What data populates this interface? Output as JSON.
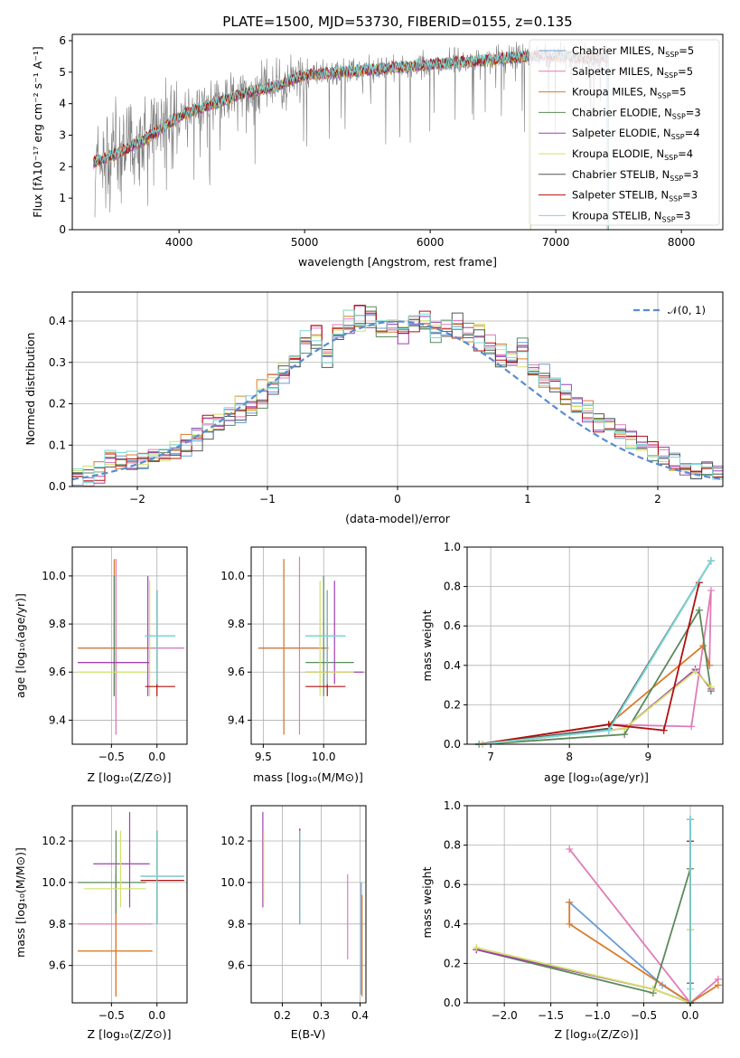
{
  "title": "PLATE=1500, MJD=53730, FIBERID=0155, z=0.135",
  "colors": {
    "series": [
      "#6a9bd8",
      "#e07bb8",
      "#d97b2a",
      "#5a8a5a",
      "#a040b0",
      "#d4e06a",
      "#555555",
      "#b01010",
      "#7ad8d8"
    ],
    "normal": "#5a8cd0",
    "spectrum": "#7f7f7f",
    "grid": "#b0b0b0"
  },
  "panels": {
    "spectrum": {
      "xlabel": "wavelength [Angstrom, rest frame]",
      "ylabel": "Flux [fλ10⁻¹⁷ erg cm⁻² s⁻¹ A⁻¹]",
      "xticks": [
        "4000",
        "5000",
        "6000",
        "7000",
        "8000"
      ],
      "yticks": [
        "0",
        "1",
        "2",
        "3",
        "4",
        "5",
        "6"
      ],
      "legend": [
        "Chabrier MILES, N_SSP=5",
        "Salpeter MILES, N_SSP=5",
        "Kroupa MILES, N_SSP=5",
        "Chabrier ELODIE, N_SSP=3",
        "Salpeter ELODIE, N_SSP=4",
        "Kroupa ELODIE, N_SSP=4",
        "Chabrier STELIB, N_SSP=3",
        "Salpeter STELIB, N_SSP=3",
        "Kroupa STELIB, N_SSP=3"
      ]
    },
    "residuals": {
      "xlabel": "(data-model)/error",
      "ylabel": "Normed distribution",
      "xticks": [
        "−2",
        "−1",
        "0",
        "1",
        "2"
      ],
      "yticks": [
        "0.0",
        "0.1",
        "0.2",
        "0.3",
        "0.4"
      ],
      "legend": "𝒩(0, 1)"
    },
    "age_vs_z": {
      "xlabel": "Z [log₁₀(Z/Z⊙)]",
      "ylabel": "age  [log₁₀(age/yr)]",
      "xticks": [
        "−0.5",
        "0.0"
      ],
      "yticks": [
        "9.4",
        "9.6",
        "9.8",
        "10.0"
      ]
    },
    "age_vs_mass": {
      "xlabel": "mass [log₁₀(M/M⊙)]",
      "xticks": [
        "9.5",
        "10.0"
      ],
      "yticks": [
        "9.4",
        "9.6",
        "9.8",
        "10.0"
      ]
    },
    "weight_vs_age": {
      "xlabel": "age  [log₁₀(age/yr)]",
      "ylabel": "mass weight",
      "xticks": [
        "7",
        "8",
        "9"
      ],
      "yticks": [
        "0.0",
        "0.2",
        "0.4",
        "0.6",
        "0.8",
        "1.0"
      ]
    },
    "mass_vs_z": {
      "xlabel": "Z [log₁₀(Z/Z⊙)]",
      "ylabel": "mass [log₁₀(M/M⊙)]",
      "xticks": [
        "−0.5",
        "0.0"
      ],
      "yticks": [
        "9.6",
        "9.8",
        "10.0",
        "10.2"
      ]
    },
    "mass_vs_ebv": {
      "xlabel": "E(B-V)",
      "xticks": [
        "0.2",
        "0.3",
        "0.4"
      ],
      "yticks": [
        "9.6",
        "9.8",
        "10.0",
        "10.2"
      ]
    },
    "weight_vs_z": {
      "xlabel": "Z [log₁₀(Z/Z⊙)]",
      "ylabel": "mass weight",
      "xticks": [
        "−2.0",
        "−1.5",
        "−1.0",
        "−0.5",
        "0.0"
      ],
      "yticks": [
        "0.0",
        "0.2",
        "0.4",
        "0.6",
        "0.8",
        "1.0"
      ]
    }
  },
  "chart_data": [
    {
      "panel": "spectrum",
      "type": "line",
      "xlim": [
        3150,
        8330
      ],
      "ylim": [
        0,
        6.2
      ],
      "data_approx": {
        "x": [
          3300,
          3500,
          3700,
          3900,
          4000,
          4200,
          4500,
          4800,
          5000,
          5300,
          5600,
          5900,
          6200,
          6500,
          6800,
          7100,
          7300,
          7500,
          7700
        ],
        "y": [
          2.1,
          2.4,
          2.8,
          3.3,
          3.6,
          3.9,
          4.3,
          4.6,
          4.9,
          5.0,
          5.1,
          5.2,
          5.3,
          5.4,
          5.5,
          5.5,
          5.4,
          5.5,
          5.3
        ]
      },
      "series_count": 9
    },
    {
      "panel": "residuals",
      "type": "line",
      "xlim": [
        -2.5,
        2.5
      ],
      "ylim": [
        0,
        0.47
      ],
      "normal_curve": {
        "mu": 0,
        "sigma": 1
      },
      "histogram_approx": {
        "bin_width": 0.1,
        "bins_from": -2.5,
        "series": [
          {
            "values": [
              0.02,
              0.02,
              0.03,
              0.05,
              0.06,
              0.05,
              0.06,
              0.08,
              0.07,
              0.08,
              0.09,
              0.1,
              0.12,
              0.14,
              0.16,
              0.17,
              0.19,
              0.2,
              0.24,
              0.27,
              0.3,
              0.33,
              0.35,
              0.3,
              0.36,
              0.37,
              0.4,
              0.42,
              0.37,
              0.38,
              0.38,
              0.41,
              0.39,
              0.36,
              0.38,
              0.4,
              0.38,
              0.37,
              0.34,
              0.3,
              0.32,
              0.35,
              0.27,
              0.28,
              0.24,
              0.22,
              0.2,
              0.18,
              0.16,
              0.15,
              0.13,
              0.11,
              0.09,
              0.08,
              0.07,
              0.06,
              0.05,
              0.04,
              0.04,
              0.03
            ]
          },
          {
            "values": [
              0.03,
              0.02,
              0.03,
              0.06,
              0.05,
              0.06,
              0.07,
              0.07,
              0.08,
              0.09,
              0.1,
              0.13,
              0.17,
              0.15,
              0.18,
              0.19,
              0.21,
              0.22,
              0.26,
              0.28,
              0.31,
              0.34,
              0.38,
              0.33,
              0.37,
              0.39,
              0.43,
              0.4,
              0.38,
              0.4,
              0.36,
              0.39,
              0.41,
              0.38,
              0.39,
              0.38,
              0.37,
              0.35,
              0.36,
              0.32,
              0.31,
              0.32,
              0.28,
              0.27,
              0.26,
              0.23,
              0.2,
              0.17,
              0.15,
              0.16,
              0.14,
              0.12,
              0.1,
              0.09,
              0.08,
              0.06,
              0.05,
              0.05,
              0.04,
              0.03
            ]
          },
          {
            "values": [
              0.02,
              0.03,
              0.04,
              0.07,
              0.06,
              0.07,
              0.06,
              0.08,
              0.07,
              0.09,
              0.11,
              0.12,
              0.15,
              0.16,
              0.17,
              0.2,
              0.2,
              0.24,
              0.25,
              0.29,
              0.32,
              0.36,
              0.35,
              0.32,
              0.38,
              0.41,
              0.39,
              0.4,
              0.38,
              0.39,
              0.38,
              0.4,
              0.4,
              0.37,
              0.4,
              0.38,
              0.36,
              0.37,
              0.33,
              0.33,
              0.3,
              0.31,
              0.28,
              0.25,
              0.25,
              0.21,
              0.2,
              0.19,
              0.15,
              0.14,
              0.14,
              0.11,
              0.1,
              0.09,
              0.08,
              0.06,
              0.05,
              0.04,
              0.04,
              0.03
            ]
          }
        ]
      }
    },
    {
      "panel": "age_vs_z",
      "type": "scatter",
      "xlim": [
        -0.93,
        0.33
      ],
      "ylim": [
        9.3,
        10.12
      ],
      "crosses": [
        {
          "z": -0.45,
          "age": 9.7,
          "z_err": [
            -0.87,
            0.3
          ],
          "age_err": [
            9.34,
            10.07
          ]
        },
        {
          "z": -0.45,
          "age": 9.7,
          "z_err": [
            -0.87,
            0.3
          ],
          "age_err": [
            9.34,
            10.07
          ]
        },
        {
          "z": -0.47,
          "age": 9.7,
          "z_err": [
            -0.87,
            -0.08
          ],
          "age_err": [
            9.5,
            10.07
          ]
        },
        {
          "z": -0.47,
          "age": 9.64,
          "z_err": [
            -0.87,
            -0.08
          ],
          "age_err": [
            9.5,
            10.0
          ]
        },
        {
          "z": -0.1,
          "age": 9.64,
          "z_err": [
            -0.87,
            -0.08
          ],
          "age_err": [
            9.5,
            10.0
          ]
        },
        {
          "z": -0.08,
          "age": 9.6,
          "z_err": [
            -0.87,
            -0.12
          ],
          "age_err": [
            9.5,
            9.98
          ]
        },
        {
          "z": 0.0,
          "age": 9.75,
          "z_err": [
            -0.13,
            0.2
          ],
          "age_err": [
            9.55,
            9.94
          ]
        },
        {
          "z": 0.0,
          "age": 9.54,
          "z_err": [
            -0.13,
            0.2
          ],
          "age_err": [
            9.5,
            9.94
          ]
        },
        {
          "z": 0.0,
          "age": 9.75,
          "z_err": [
            -0.13,
            0.2
          ],
          "age_err": [
            9.55,
            9.94
          ]
        }
      ]
    },
    {
      "panel": "age_vs_mass",
      "type": "scatter",
      "xlim": [
        9.4,
        10.35
      ],
      "ylim": [
        9.3,
        10.12
      ],
      "crosses": [
        {
          "mass": 9.67,
          "age": 9.7,
          "mass_err": [
            9.46,
            10.04
          ],
          "age_err": [
            9.34,
            10.07
          ]
        },
        {
          "mass": 9.8,
          "age": 9.7,
          "mass_err": [
            9.46,
            10.04
          ],
          "age_err": [
            9.34,
            10.08
          ]
        },
        {
          "mass": 9.67,
          "age": 9.7,
          "mass_err": [
            9.46,
            10.04
          ],
          "age_err": [
            9.34,
            10.07
          ]
        },
        {
          "mass": 10.0,
          "age": 9.64,
          "mass_err": [
            9.85,
            10.25
          ],
          "age_err": [
            9.5,
            10.0
          ]
        },
        {
          "mass": 10.09,
          "age": 9.6,
          "mass_err": [
            9.85,
            10.33
          ],
          "age_err": [
            9.55,
            9.98
          ]
        },
        {
          "mass": 9.97,
          "age": 9.6,
          "mass_err": [
            9.85,
            10.25
          ],
          "age_err": [
            9.5,
            9.98
          ]
        },
        {
          "mass": 10.03,
          "age": 9.75,
          "mass_err": [
            9.85,
            10.18
          ],
          "age_err": [
            9.55,
            9.94
          ]
        },
        {
          "mass": 10.03,
          "age": 9.54,
          "mass_err": [
            9.85,
            10.18
          ],
          "age_err": [
            9.5,
            9.94
          ]
        },
        {
          "mass": 10.03,
          "age": 9.75,
          "mass_err": [
            9.85,
            10.18
          ],
          "age_err": [
            9.55,
            9.94
          ]
        }
      ]
    },
    {
      "panel": "weight_vs_age",
      "type": "line",
      "xlim": [
        6.7,
        9.95
      ],
      "ylim": [
        0,
        1
      ],
      "series": [
        {
          "x": [
            6.85,
            8.5,
            9.8
          ],
          "y": [
            0.0,
            0.07,
            0.93
          ]
        },
        {
          "x": [
            6.85,
            8.5,
            9.55,
            9.8,
            9.78
          ],
          "y": [
            0.0,
            0.1,
            0.09,
            0.78,
            0.4
          ]
        },
        {
          "x": [
            6.85,
            8.5,
            9.7,
            9.78
          ],
          "y": [
            0.0,
            0.1,
            0.5,
            0.4
          ]
        },
        {
          "x": [
            6.9,
            8.7,
            9.65,
            9.8
          ],
          "y": [
            0.0,
            0.05,
            0.68,
            0.27
          ]
        },
        {
          "x": [
            6.9,
            8.7,
            9.6,
            9.8
          ],
          "y": [
            0.0,
            0.08,
            0.38,
            0.28
          ]
        },
        {
          "x": [
            6.9,
            8.7,
            9.6,
            9.8
          ],
          "y": [
            0.0,
            0.08,
            0.37,
            0.29
          ]
        },
        {
          "x": [
            6.85,
            8.5,
            9.8
          ],
          "y": [
            0.0,
            0.08,
            0.93
          ]
        },
        {
          "x": [
            6.85,
            8.5,
            9.2,
            9.65
          ],
          "y": [
            0.0,
            0.1,
            0.07,
            0.82
          ]
        },
        {
          "x": [
            6.85,
            8.5,
            9.8
          ],
          "y": [
            0.0,
            0.07,
            0.93
          ]
        }
      ]
    },
    {
      "panel": "mass_vs_z",
      "type": "scatter",
      "xlim": [
        -0.93,
        0.33
      ],
      "ylim": [
        9.42,
        10.37
      ],
      "crosses": [
        {
          "z": -0.45,
          "mass": 9.67,
          "z_err": [
            -0.87,
            -0.05
          ],
          "mass_err": [
            9.45,
            10.04
          ]
        },
        {
          "z": -0.45,
          "mass": 9.8,
          "z_err": [
            -0.87,
            -0.05
          ],
          "mass_err": [
            9.46,
            10.08
          ]
        },
        {
          "z": -0.45,
          "mass": 9.67,
          "z_err": [
            -0.87,
            -0.05
          ],
          "mass_err": [
            9.45,
            10.04
          ]
        },
        {
          "z": -0.45,
          "mass": 10.0,
          "z_err": [
            -0.87,
            -0.12
          ],
          "mass_err": [
            9.85,
            10.25
          ]
        },
        {
          "z": -0.3,
          "mass": 10.09,
          "z_err": [
            -0.7,
            -0.08
          ],
          "mass_err": [
            9.88,
            10.34
          ]
        },
        {
          "z": -0.4,
          "mass": 9.97,
          "z_err": [
            -0.8,
            -0.12
          ],
          "mass_err": [
            9.88,
            10.25
          ]
        },
        {
          "z": 0.0,
          "mass": 10.03,
          "z_err": [
            -0.18,
            0.3
          ],
          "mass_err": [
            9.8,
            10.25
          ]
        },
        {
          "z": 0.0,
          "mass": 10.01,
          "z_err": [
            -0.18,
            0.3
          ],
          "mass_err": [
            9.8,
            10.25
          ]
        },
        {
          "z": 0.0,
          "mass": 10.03,
          "z_err": [
            -0.18,
            0.3
          ],
          "mass_err": [
            9.8,
            10.25
          ]
        }
      ]
    },
    {
      "panel": "mass_vs_ebv",
      "type": "scatter",
      "xlim": [
        0.12,
        0.415
      ],
      "ylim": [
        9.42,
        10.37
      ],
      "crosses": [
        {
          "ebv": 0.403,
          "mass_err": [
            9.46,
            10.0
          ]
        },
        {
          "ebv": 0.368,
          "mass_err": [
            9.63,
            10.04
          ]
        },
        {
          "ebv": 0.405,
          "mass_err": [
            9.45,
            9.94
          ]
        },
        {
          "ebv": 0.245,
          "mass_err": [
            9.8,
            10.24
          ]
        },
        {
          "ebv": 0.15,
          "mass_err": [
            9.88,
            10.34
          ]
        },
        {
          "ebv": 0.152,
          "mass_err": [
            9.9,
            10.25
          ]
        },
        {
          "ebv": 0.245,
          "mass_err": [
            9.8,
            10.25
          ]
        },
        {
          "ebv": 0.245,
          "mass_err": [
            9.8,
            10.26
          ]
        },
        {
          "ebv": 0.245,
          "mass_err": [
            9.8,
            10.25
          ]
        }
      ]
    },
    {
      "panel": "weight_vs_z",
      "type": "line",
      "xlim": [
        -2.4,
        0.35
      ],
      "ylim": [
        0,
        1
      ],
      "series": [
        {
          "x": [
            -1.3,
            -0.3,
            0.0,
            0.0
          ],
          "y": [
            0.51,
            0.09,
            0.0,
            0.93
          ]
        },
        {
          "x": [
            -1.3,
            0.0,
            0.3
          ],
          "y": [
            0.78,
            0.0,
            0.12
          ]
        },
        {
          "x": [
            -1.3,
            -1.3,
            0.0,
            0.3
          ],
          "y": [
            0.51,
            0.4,
            0.0,
            0.09
          ]
        },
        {
          "x": [
            -2.3,
            -0.4,
            0.0,
            0.0
          ],
          "y": [
            0.27,
            0.05,
            0.68,
            0.0
          ]
        },
        {
          "x": [
            -2.3,
            -0.4,
            0.0,
            0.0
          ],
          "y": [
            0.27,
            0.07,
            0.0,
            0.37
          ]
        },
        {
          "x": [
            -2.3,
            -0.4,
            0.0,
            0.0
          ],
          "y": [
            0.28,
            0.07,
            0.0,
            0.37
          ]
        },
        {
          "x": [
            0.0,
            0.0,
            0.0
          ],
          "y": [
            0.0,
            0.1,
            0.93
          ]
        },
        {
          "x": [
            0.0,
            0.0
          ],
          "y": [
            0.0,
            0.82
          ]
        },
        {
          "x": [
            0.0,
            0.0,
            0.0
          ],
          "y": [
            0.0,
            0.07,
            0.93
          ]
        }
      ]
    }
  ]
}
